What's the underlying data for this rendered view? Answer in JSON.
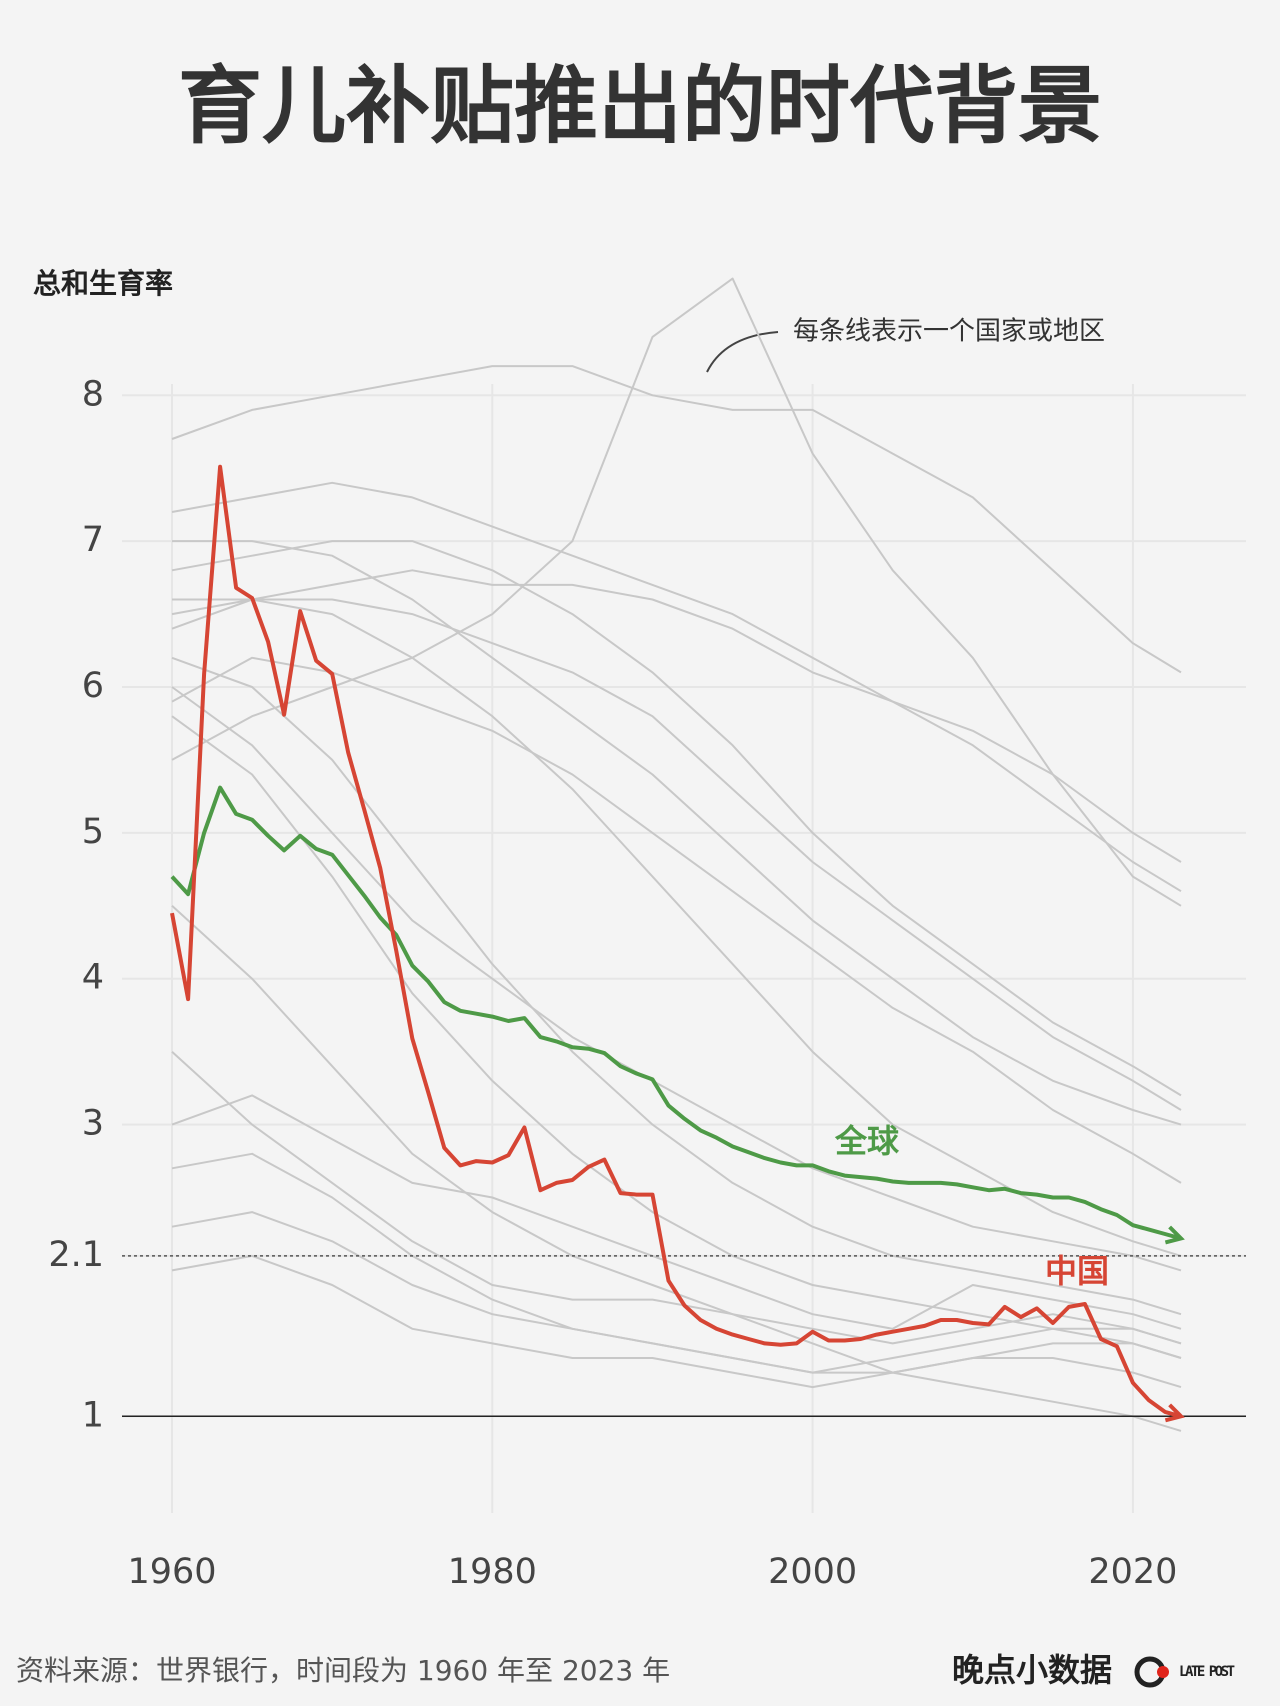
{
  "chart_data": {
    "type": "line",
    "title": "育儿补贴推出的时代背景",
    "y_label": "总和生育率",
    "annotation": "每条线表示一个国家或地区",
    "source": "资料来源：世界银行，时间段为 1960 年至 2023 年",
    "brand": "晚点小数据",
    "brand_logo": "LATE POST",
    "x": [
      1960,
      1961,
      1962,
      1963,
      1964,
      1965,
      1966,
      1967,
      1968,
      1969,
      1970,
      1971,
      1972,
      1973,
      1974,
      1975,
      1976,
      1977,
      1978,
      1979,
      1980,
      1981,
      1982,
      1983,
      1984,
      1985,
      1986,
      1987,
      1988,
      1989,
      1990,
      1991,
      1992,
      1993,
      1994,
      1995,
      1996,
      1997,
      1998,
      1999,
      2000,
      2001,
      2002,
      2003,
      2004,
      2005,
      2006,
      2007,
      2008,
      2009,
      2010,
      2011,
      2012,
      2013,
      2014,
      2015,
      2016,
      2017,
      2018,
      2019,
      2020,
      2021,
      2022,
      2023
    ],
    "series": [
      {
        "name": "全球",
        "color": "#4e9a47",
        "values": [
          4.7,
          4.58,
          5.0,
          5.31,
          5.13,
          5.09,
          4.98,
          4.88,
          4.98,
          4.89,
          4.85,
          4.71,
          4.57,
          4.42,
          4.3,
          4.09,
          3.98,
          3.84,
          3.78,
          3.76,
          3.74,
          3.71,
          3.73,
          3.6,
          3.57,
          3.53,
          3.52,
          3.49,
          3.4,
          3.35,
          3.31,
          3.13,
          3.04,
          2.96,
          2.91,
          2.85,
          2.81,
          2.77,
          2.74,
          2.72,
          2.72,
          2.68,
          2.65,
          2.64,
          2.63,
          2.61,
          2.6,
          2.6,
          2.6,
          2.59,
          2.57,
          2.55,
          2.56,
          2.53,
          2.52,
          2.5,
          2.5,
          2.47,
          2.42,
          2.38,
          2.31,
          2.28,
          2.25,
          2.22
        ]
      },
      {
        "name": "中国",
        "color": "#d64534",
        "values": [
          4.45,
          3.86,
          6.09,
          7.51,
          6.68,
          6.61,
          6.31,
          5.81,
          6.52,
          6.18,
          6.09,
          5.55,
          5.16,
          4.76,
          4.19,
          3.59,
          3.22,
          2.84,
          2.72,
          2.75,
          2.74,
          2.79,
          2.98,
          2.55,
          2.6,
          2.62,
          2.71,
          2.76,
          2.53,
          2.52,
          2.52,
          1.93,
          1.76,
          1.66,
          1.6,
          1.56,
          1.53,
          1.5,
          1.49,
          1.5,
          1.58,
          1.52,
          1.52,
          1.53,
          1.56,
          1.58,
          1.6,
          1.62,
          1.66,
          1.66,
          1.64,
          1.63,
          1.75,
          1.68,
          1.74,
          1.64,
          1.75,
          1.77,
          1.53,
          1.48,
          1.23,
          1.11,
          1.03,
          1.0
        ]
      }
    ],
    "background": {
      "color": "#c8c8c8",
      "x": [
        1960,
        1965,
        1970,
        1975,
        1980,
        1985,
        1990,
        1995,
        2000,
        2005,
        2010,
        2015,
        2020,
        2023
      ],
      "lines": [
        [
          7.2,
          7.3,
          7.4,
          7.3,
          7.1,
          6.9,
          6.7,
          6.5,
          6.2,
          5.9,
          5.6,
          5.2,
          4.8,
          4.6
        ],
        [
          6.8,
          6.9,
          7.0,
          7.0,
          6.8,
          6.5,
          6.1,
          5.6,
          5.0,
          4.5,
          4.1,
          3.7,
          3.4,
          3.2
        ],
        [
          6.5,
          6.6,
          6.5,
          6.2,
          5.8,
          5.3,
          4.7,
          4.1,
          3.5,
          3.0,
          2.7,
          2.4,
          2.2,
          2.1
        ],
        [
          6.2,
          6.0,
          5.5,
          4.8,
          4.1,
          3.5,
          3.0,
          2.6,
          2.3,
          2.1,
          2.0,
          1.9,
          1.8,
          1.7
        ],
        [
          5.8,
          5.4,
          4.7,
          3.9,
          3.3,
          2.8,
          2.4,
          2.1,
          1.9,
          1.8,
          1.7,
          1.6,
          1.5,
          1.4
        ],
        [
          3.5,
          3.0,
          2.6,
          2.2,
          1.9,
          1.8,
          1.8,
          1.7,
          1.6,
          1.5,
          1.6,
          1.7,
          1.6,
          1.5
        ],
        [
          2.7,
          2.8,
          2.5,
          2.1,
          1.8,
          1.6,
          1.5,
          1.4,
          1.3,
          1.3,
          1.4,
          1.5,
          1.5,
          1.4
        ],
        [
          2.3,
          2.4,
          2.2,
          1.9,
          1.7,
          1.6,
          1.5,
          1.4,
          1.3,
          1.4,
          1.5,
          1.6,
          1.6,
          1.5
        ],
        [
          2.0,
          2.1,
          1.9,
          1.6,
          1.5,
          1.4,
          1.4,
          1.3,
          1.2,
          1.3,
          1.4,
          1.4,
          1.3,
          1.2
        ],
        [
          5.9,
          6.2,
          6.1,
          5.9,
          5.7,
          5.4,
          5.0,
          4.6,
          4.2,
          3.8,
          3.5,
          3.1,
          2.8,
          2.6
        ],
        [
          6.6,
          6.6,
          6.7,
          6.8,
          6.7,
          6.7,
          6.6,
          6.4,
          6.1,
          5.9,
          5.7,
          5.4,
          5.0,
          4.8
        ],
        [
          5.5,
          5.8,
          6.0,
          6.2,
          6.5,
          7.0,
          8.4,
          8.8,
          7.6,
          6.8,
          6.2,
          5.4,
          4.7,
          4.5
        ],
        [
          7.7,
          7.9,
          8.0,
          8.1,
          8.2,
          8.2,
          8.0,
          7.9,
          7.9,
          7.6,
          7.3,
          6.8,
          6.3,
          6.1
        ],
        [
          4.5,
          4.0,
          3.4,
          2.8,
          2.4,
          2.1,
          1.9,
          1.7,
          1.5,
          1.3,
          1.2,
          1.1,
          1.0,
          0.9
        ],
        [
          6.0,
          5.6,
          5.0,
          4.4,
          4.0,
          3.6,
          3.3,
          3.0,
          2.7,
          2.5,
          2.3,
          2.2,
          2.1,
          2.0
        ],
        [
          7.0,
          7.0,
          6.9,
          6.6,
          6.2,
          5.8,
          5.4,
          4.9,
          4.4,
          4.0,
          3.6,
          3.3,
          3.1,
          3.0
        ],
        [
          3.0,
          3.2,
          2.9,
          2.6,
          2.5,
          2.3,
          2.1,
          1.9,
          1.7,
          1.6,
          1.9,
          1.8,
          1.7,
          1.6
        ],
        [
          6.4,
          6.6,
          6.6,
          6.5,
          6.3,
          6.1,
          5.8,
          5.3,
          4.8,
          4.4,
          4.0,
          3.6,
          3.3,
          3.1
        ]
      ]
    },
    "xlim": [
      1957,
      2025
    ],
    "ylim": [
      0.2,
      8.9
    ],
    "xticks": [
      1960,
      1980,
      2000,
      2020
    ],
    "yticks": [
      1,
      2.1,
      3,
      4,
      5,
      6,
      7,
      8
    ],
    "grid": true,
    "hlines": [
      {
        "value": 2.1,
        "style": "dotted"
      },
      {
        "value": 1,
        "style": "solid"
      }
    ]
  }
}
